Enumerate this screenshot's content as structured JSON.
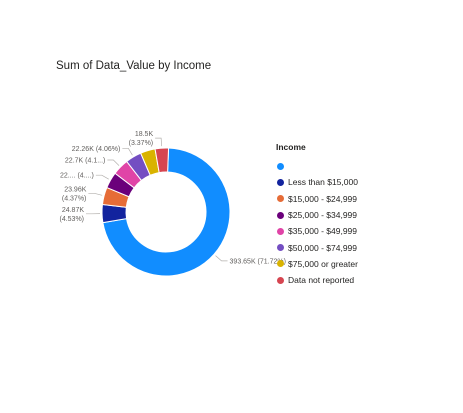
{
  "chart_data": {
    "type": "donut",
    "title": "Sum of Data_Value by Income",
    "legend_title": "Income",
    "legend_position": "right",
    "series": [
      {
        "name": "",
        "value": 393.65,
        "label": "393.65K (71.72%)",
        "color": "#118DFF"
      },
      {
        "name": "Less than $15,000",
        "value": 24.87,
        "label": "24.87K\n(4.53%)",
        "color": "#12239E"
      },
      {
        "name": "$15,000 - $24,999",
        "value": 23.96,
        "label": "23.96K\n(4.37%)",
        "color": "#E66C37"
      },
      {
        "name": "$25,000 - $34,999",
        "value": 22.5,
        "label": "22.... (4....)",
        "color": "#6B007B"
      },
      {
        "name": "$35,000 - $49,999",
        "value": 22.7,
        "label": "22.7K (4.1...)",
        "color": "#E044A7"
      },
      {
        "name": "$50,000 - $74,999",
        "value": 22.26,
        "label": "22.26K (4.06%)",
        "color": "#744EC2"
      },
      {
        "name": "$75,000 or greater",
        "value": 20.5,
        "label": "",
        "color": "#D9B300"
      },
      {
        "name": "Data not reported",
        "value": 18.5,
        "label": "18.5K\n(3.37%)",
        "color": "#D64550"
      }
    ]
  }
}
